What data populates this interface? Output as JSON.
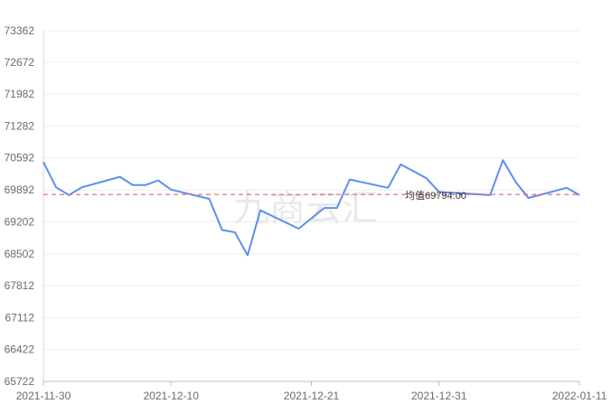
{
  "chart_data": {
    "type": "line",
    "title": "",
    "xlabel": "",
    "ylabel": "",
    "ylim": [
      65722,
      73362
    ],
    "y_ticks": [
      65722,
      66422,
      67112,
      67812,
      68502,
      69202,
      69892,
      70592,
      71282,
      71982,
      72672,
      73362
    ],
    "x_range": [
      "2021-11-30",
      "2022-01-11"
    ],
    "x_ticks": [
      "2021-11-30",
      "2021-12-10",
      "2021-12-21",
      "2021-12-31",
      "2022-01-11"
    ],
    "grid": true,
    "series": [
      {
        "color": "#5b8ff0",
        "points": [
          [
            "2021-11-30",
            70500
          ],
          [
            "2021-12-01",
            69950
          ],
          [
            "2021-12-02",
            69780
          ],
          [
            "2021-12-03",
            69950
          ],
          [
            "2021-12-06",
            70180
          ],
          [
            "2021-12-07",
            70000
          ],
          [
            "2021-12-08",
            70000
          ],
          [
            "2021-12-09",
            70100
          ],
          [
            "2021-12-10",
            69900
          ],
          [
            "2021-12-13",
            69700
          ],
          [
            "2021-12-14",
            69020
          ],
          [
            "2021-12-15",
            68970
          ],
          [
            "2021-12-16",
            68470
          ],
          [
            "2021-12-17",
            69450
          ],
          [
            "2021-12-20",
            69050
          ],
          [
            "2021-12-22",
            69500
          ],
          [
            "2021-12-23",
            69500
          ],
          [
            "2021-12-24",
            70120
          ],
          [
            "2021-12-27",
            69940
          ],
          [
            "2021-12-28",
            70450
          ],
          [
            "2021-12-30",
            70150
          ],
          [
            "2021-12-31",
            69850
          ],
          [
            "2022-01-03",
            69800
          ],
          [
            "2022-01-04",
            69780
          ],
          [
            "2022-01-05",
            70540
          ],
          [
            "2022-01-06",
            70070
          ],
          [
            "2022-01-07",
            69720
          ],
          [
            "2022-01-10",
            69940
          ],
          [
            "2022-01-11",
            69780
          ]
        ]
      }
    ],
    "average": {
      "value": 69794.0,
      "label": "均值69794.00",
      "color": "#e8606a"
    }
  },
  "watermark": "九商云汇"
}
